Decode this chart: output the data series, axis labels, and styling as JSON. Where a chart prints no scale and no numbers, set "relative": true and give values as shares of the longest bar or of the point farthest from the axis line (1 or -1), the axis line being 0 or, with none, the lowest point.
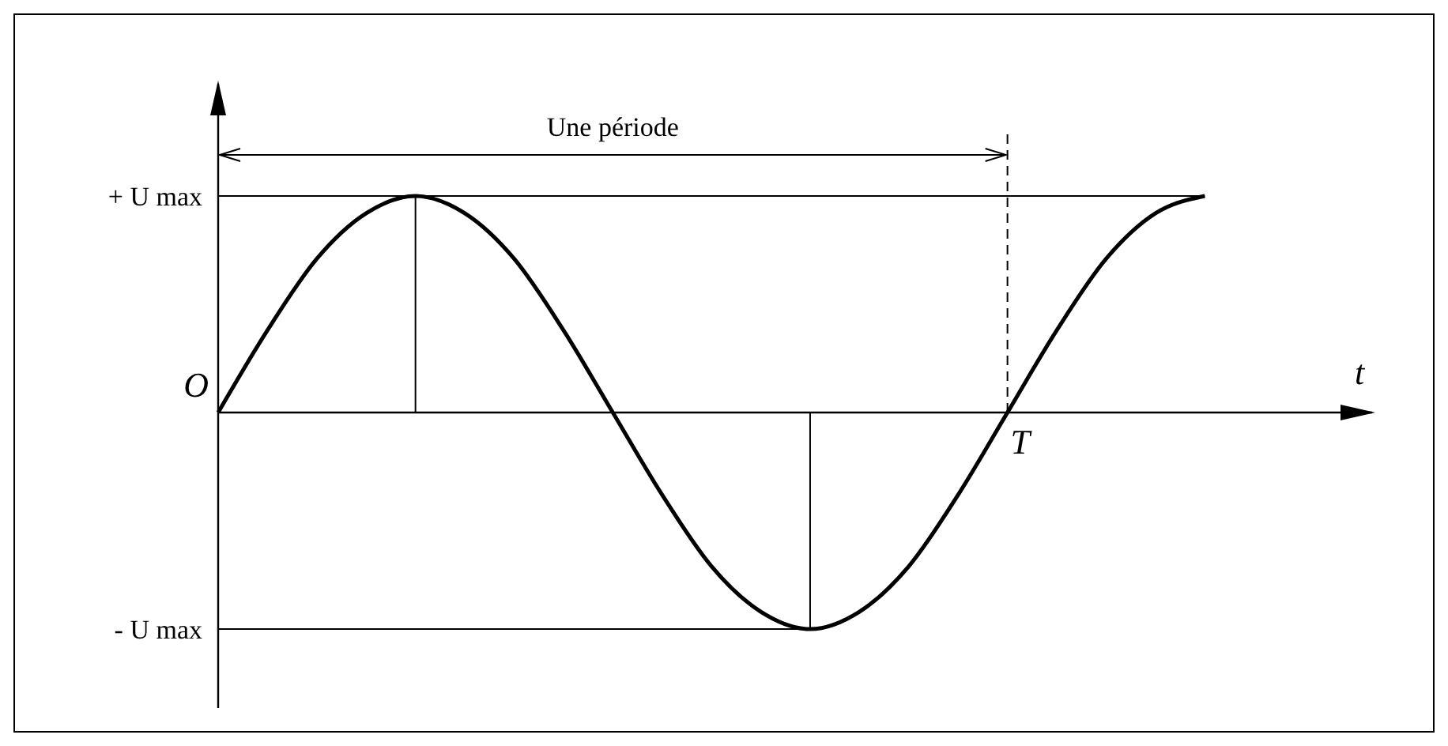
{
  "chart_data": {
    "type": "line",
    "relative": true,
    "xlabel": "t",
    "annotations": [
      "Une période"
    ],
    "categories": [
      "O",
      null,
      null,
      null,
      null,
      null,
      null,
      null,
      null,
      null,
      null,
      null,
      null,
      null,
      null,
      null,
      "T",
      null,
      null,
      null,
      null
    ],
    "series": [
      {
        "color": "#000000",
        "values": [
          0,
          0.38,
          0.71,
          0.92,
          1,
          0.92,
          0.71,
          0.38,
          0,
          -0.38,
          -0.71,
          -0.92,
          -1,
          -0.92,
          -0.71,
          -0.38,
          0,
          0.38,
          0.71,
          0.92,
          1
        ]
      }
    ],
    "ref_lines": [
      {
        "axis": "y",
        "value": 1,
        "label": "+ U max"
      },
      {
        "axis": "y",
        "value": -1,
        "label": "- U max"
      },
      {
        "axis": "x",
        "value": "T",
        "line_style": "dashed"
      }
    ],
    "marker": "none",
    "line_style": "solid"
  }
}
